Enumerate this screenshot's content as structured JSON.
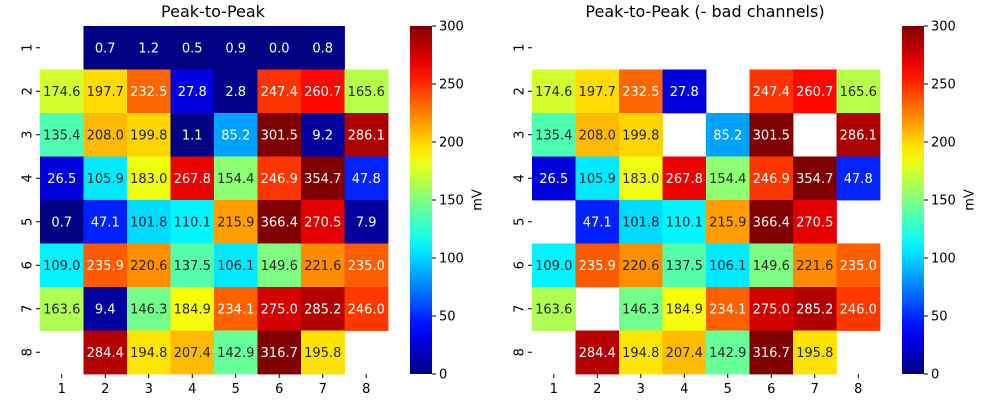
{
  "colormap": "jet",
  "chart_data": [
    {
      "type": "heatmap",
      "title": "Peak-to-Peak",
      "x_labels": [
        "1",
        "2",
        "3",
        "4",
        "5",
        "6",
        "7",
        "8"
      ],
      "y_labels": [
        "1",
        "2",
        "3",
        "4",
        "5",
        "6",
        "7",
        "8"
      ],
      "values": [
        [
          null,
          0.7,
          1.2,
          0.5,
          0.9,
          0.0,
          0.8,
          null
        ],
        [
          174.6,
          197.7,
          232.5,
          27.8,
          2.8,
          247.4,
          260.7,
          165.6
        ],
        [
          135.4,
          208.0,
          199.8,
          1.1,
          85.2,
          301.5,
          9.2,
          286.1
        ],
        [
          26.5,
          105.9,
          183.0,
          267.8,
          154.4,
          246.9,
          354.7,
          47.8
        ],
        [
          0.7,
          47.1,
          101.8,
          110.1,
          215.9,
          366.4,
          270.5,
          7.9
        ],
        [
          109.0,
          235.9,
          220.6,
          137.5,
          106.1,
          149.6,
          221.6,
          235.0
        ],
        [
          163.6,
          9.4,
          146.3,
          184.9,
          234.1,
          275.0,
          285.2,
          246.0
        ],
        [
          null,
          284.4,
          194.8,
          207.4,
          142.9,
          316.7,
          195.8,
          null
        ]
      ],
      "colorbar": {
        "label": "mV",
        "min": 0,
        "max": 300,
        "ticks": [
          0,
          50,
          100,
          150,
          200,
          250,
          300
        ]
      }
    },
    {
      "type": "heatmap",
      "title": "Peak-to-Peak (- bad channels)",
      "x_labels": [
        "1",
        "2",
        "3",
        "4",
        "5",
        "6",
        "7",
        "8"
      ],
      "y_labels": [
        "1",
        "2",
        "3",
        "4",
        "5",
        "6",
        "7",
        "8"
      ],
      "values": [
        [
          null,
          null,
          null,
          null,
          null,
          null,
          null,
          null
        ],
        [
          174.6,
          197.7,
          232.5,
          27.8,
          null,
          247.4,
          260.7,
          165.6
        ],
        [
          135.4,
          208.0,
          199.8,
          null,
          85.2,
          301.5,
          null,
          286.1
        ],
        [
          26.5,
          105.9,
          183.0,
          267.8,
          154.4,
          246.9,
          354.7,
          47.8
        ],
        [
          null,
          47.1,
          101.8,
          110.1,
          215.9,
          366.4,
          270.5,
          null
        ],
        [
          109.0,
          235.9,
          220.6,
          137.5,
          106.1,
          149.6,
          221.6,
          235.0
        ],
        [
          163.6,
          null,
          146.3,
          184.9,
          234.1,
          275.0,
          285.2,
          246.0
        ],
        [
          null,
          284.4,
          194.8,
          207.4,
          142.9,
          316.7,
          195.8,
          null
        ]
      ],
      "colorbar": {
        "label": "mV",
        "min": 0,
        "max": 300,
        "ticks": [
          0,
          50,
          100,
          150,
          200,
          250,
          300
        ]
      }
    }
  ]
}
